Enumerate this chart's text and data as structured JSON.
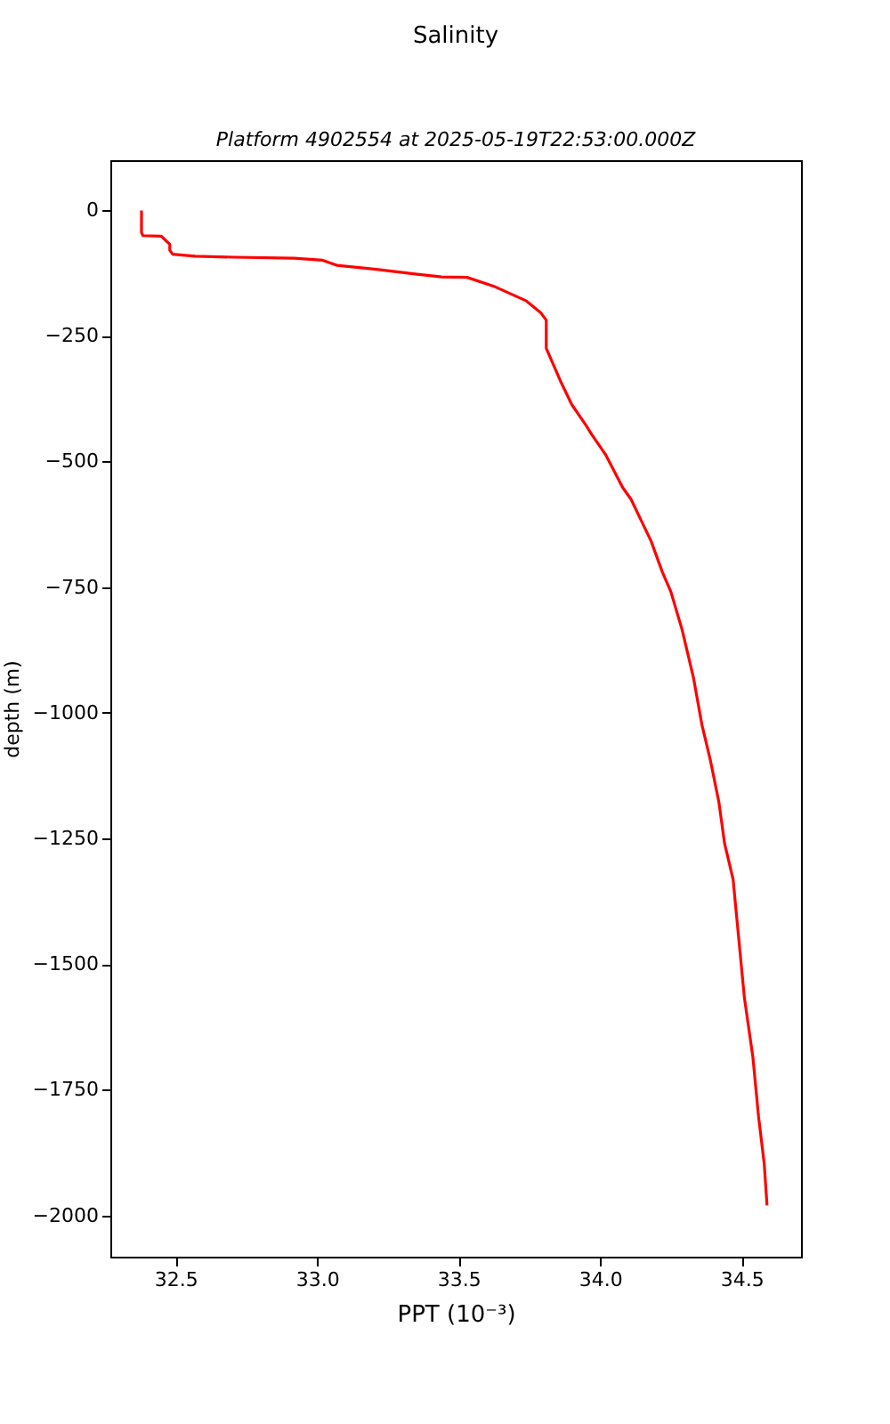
{
  "chart_data": {
    "type": "line",
    "title": "Salinity",
    "subtitle": "Platform 4902554 at 2025-05-19T22:53:00.000Z",
    "xlabel": "PPT (10⁻³)",
    "ylabel": "depth (m)",
    "x": [
      32.38,
      32.38,
      32.385,
      32.45,
      32.47,
      32.48,
      32.48,
      32.49,
      32.57,
      32.71,
      32.92,
      33.02,
      33.07,
      33.21,
      33.34,
      33.44,
      33.53,
      33.63,
      33.74,
      33.79,
      33.81,
      33.81,
      33.86,
      33.9,
      33.95,
      33.97,
      34.02,
      34.08,
      34.11,
      34.15,
      34.18,
      34.22,
      34.25,
      34.29,
      34.33,
      34.36,
      34.39,
      34.42,
      34.44,
      34.47,
      34.49,
      34.51,
      34.54,
      34.56,
      34.58,
      34.59
    ],
    "series": [
      {
        "color": "#ff0000",
        "values": [
          -1,
          -45,
          -51,
          -52,
          -63,
          -68,
          -80,
          -88,
          -92,
          -94,
          -96,
          -100,
          -110,
          -118,
          -127,
          -133,
          -134,
          -153,
          -181,
          -204,
          -219,
          -275,
          -340,
          -387,
          -428,
          -446,
          -487,
          -552,
          -576,
          -623,
          -658,
          -720,
          -759,
          -835,
          -930,
          -1024,
          -1095,
          -1178,
          -1260,
          -1331,
          -1449,
          -1567,
          -1685,
          -1803,
          -1897,
          -1980
        ]
      }
    ],
    "xlim": [
      32.27,
      34.71
    ],
    "ylim": [
      -2082,
      99
    ],
    "xticks": [
      32.5,
      {
        "value": 33,
        "label": "33.0"
      },
      33.5,
      {
        "value": 34,
        "label": "34.0"
      },
      34.5
    ],
    "yticks": [
      0,
      -250,
      -500,
      -750,
      -1000,
      -1250,
      -1500,
      -1750,
      -2000
    ],
    "grid": false,
    "marker": "none",
    "line_style": "solid"
  }
}
